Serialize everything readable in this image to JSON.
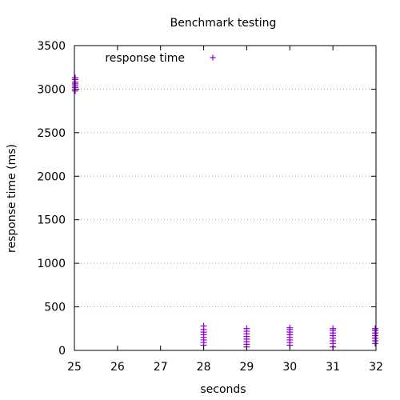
{
  "chart_data": {
    "type": "scatter",
    "title": "Benchmark testing",
    "xlabel": "seconds",
    "ylabel": "response time (ms)",
    "xlim": [
      25,
      32
    ],
    "ylim": [
      0,
      3500
    ],
    "xticks": [
      "25",
      "26",
      "27",
      "28",
      "29",
      "30",
      "31",
      "32"
    ],
    "yticks": [
      "0",
      "500",
      "1000",
      "1500",
      "2000",
      "2500",
      "3000",
      "3500"
    ],
    "grid": true,
    "grid_axis": "y",
    "legend_position": "top-left",
    "series": [
      {
        "name": "response time",
        "color": "#9400d3",
        "marker": "plus",
        "points": [
          {
            "x": 25.0,
            "y": 2980
          },
          {
            "x": 25.0,
            "y": 3000
          },
          {
            "x": 25.0,
            "y": 3020
          },
          {
            "x": 25.0,
            "y": 3040
          },
          {
            "x": 25.0,
            "y": 3060
          },
          {
            "x": 25.0,
            "y": 3080
          },
          {
            "x": 25.0,
            "y": 3110
          },
          {
            "x": 25.0,
            "y": 3130
          },
          {
            "x": 28.0,
            "y": 60
          },
          {
            "x": 28.0,
            "y": 90
          },
          {
            "x": 28.0,
            "y": 120
          },
          {
            "x": 28.0,
            "y": 150
          },
          {
            "x": 28.0,
            "y": 180
          },
          {
            "x": 28.0,
            "y": 210
          },
          {
            "x": 28.0,
            "y": 240
          },
          {
            "x": 28.0,
            "y": 280
          },
          {
            "x": 29.0,
            "y": 40
          },
          {
            "x": 29.0,
            "y": 70
          },
          {
            "x": 29.0,
            "y": 100
          },
          {
            "x": 29.0,
            "y": 130
          },
          {
            "x": 29.0,
            "y": 160
          },
          {
            "x": 29.0,
            "y": 190
          },
          {
            "x": 29.0,
            "y": 220
          },
          {
            "x": 29.0,
            "y": 250
          },
          {
            "x": 30.0,
            "y": 60
          },
          {
            "x": 30.0,
            "y": 90
          },
          {
            "x": 30.0,
            "y": 120
          },
          {
            "x": 30.0,
            "y": 150
          },
          {
            "x": 30.0,
            "y": 180
          },
          {
            "x": 30.0,
            "y": 210
          },
          {
            "x": 30.0,
            "y": 240
          },
          {
            "x": 30.0,
            "y": 260
          },
          {
            "x": 31.0,
            "y": 40
          },
          {
            "x": 31.0,
            "y": 80
          },
          {
            "x": 31.0,
            "y": 110
          },
          {
            "x": 31.0,
            "y": 140
          },
          {
            "x": 31.0,
            "y": 170
          },
          {
            "x": 31.0,
            "y": 200
          },
          {
            "x": 31.0,
            "y": 230
          },
          {
            "x": 31.0,
            "y": 250
          },
          {
            "x": 32.0,
            "y": 80
          },
          {
            "x": 32.0,
            "y": 110
          },
          {
            "x": 32.0,
            "y": 140
          },
          {
            "x": 32.0,
            "y": 170
          },
          {
            "x": 32.0,
            "y": 200
          },
          {
            "x": 32.0,
            "y": 230
          },
          {
            "x": 32.0,
            "y": 250
          }
        ]
      }
    ]
  }
}
